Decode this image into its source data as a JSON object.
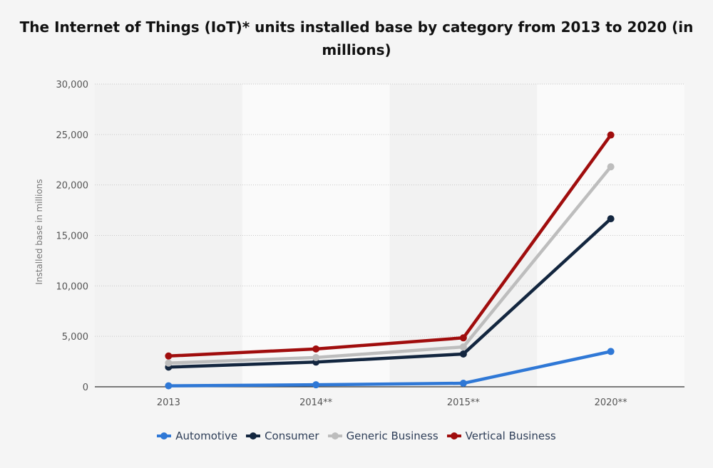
{
  "title": "The Internet of Things (IoT)* units installed base by category from 2013 to 2020 (in millions)",
  "chart_data": {
    "type": "line",
    "title": "The Internet of Things (IoT)* units installed base by category from 2013 to 2020 (in millions)",
    "xlabel": "",
    "ylabel": "Installed base in millions",
    "categories": [
      "2013",
      "2014**",
      "2015**",
      "2020**"
    ],
    "ylim": [
      0,
      30000
    ],
    "yticks": [
      0,
      5000,
      10000,
      15000,
      20000,
      25000,
      30000
    ],
    "ytick_labels": [
      "0",
      "5,000",
      "10,000",
      "15,000",
      "20,000",
      "25,000",
      "30,000"
    ],
    "grid": true,
    "legend_position": "bottom",
    "series": [
      {
        "name": "Automotive",
        "color": "#2f78d6",
        "values": [
          100,
          200,
          350,
          3500
        ]
      },
      {
        "name": "Consumer",
        "color": "#13263f",
        "values": [
          1950,
          2450,
          3250,
          16650
        ]
      },
      {
        "name": "Generic Business",
        "color": "#bdbdbd",
        "values": [
          2350,
          2900,
          3950,
          21800
        ]
      },
      {
        "name": "Vertical Business",
        "color": "#a00d0d",
        "values": [
          3050,
          3750,
          4850,
          24950
        ]
      }
    ]
  }
}
